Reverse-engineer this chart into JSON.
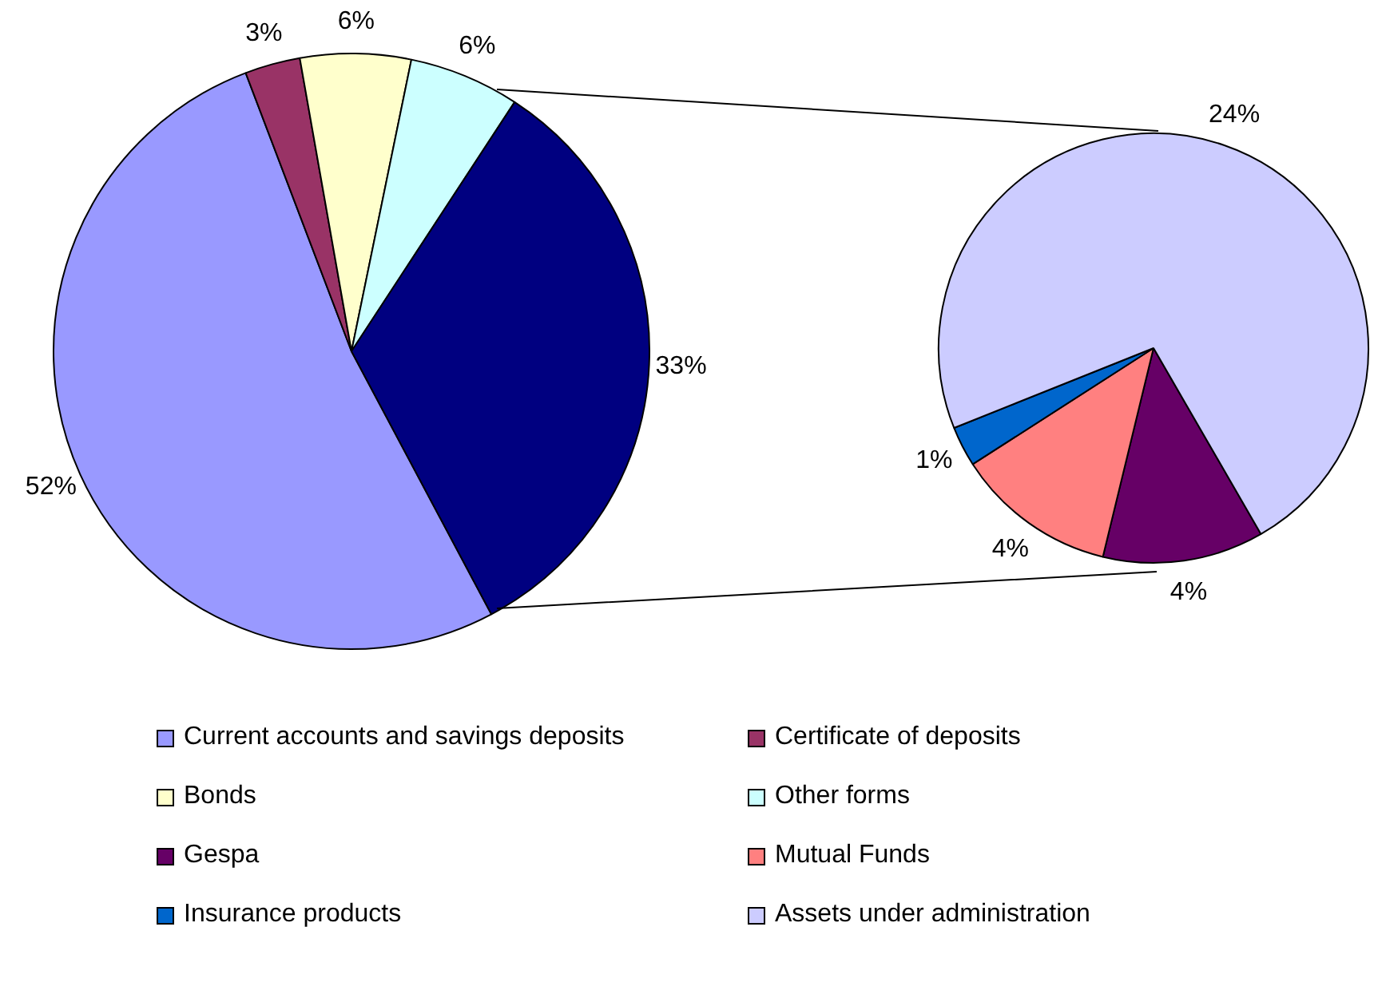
{
  "chart_data": [
    {
      "type": "pie",
      "categories": [
        "Current accounts and savings deposits",
        "Certificate of deposits",
        "Bonds",
        "Other forms",
        null
      ],
      "values": [
        52,
        3,
        6,
        6,
        33
      ],
      "value_labels": [
        "52%",
        "3%",
        "6%",
        "6%",
        "33%"
      ],
      "colors": [
        "#9999ff",
        "#993366",
        "#ffffcc",
        "#ccffff",
        "#000080"
      ],
      "legend": "bottom"
    },
    {
      "type": "pie",
      "categories": [
        "Gespa",
        "Mutual Funds",
        "Insurance products",
        "Assets under administration"
      ],
      "values": [
        4,
        4,
        1,
        24
      ],
      "value_labels": [
        "4%",
        "4%",
        "1%",
        "24%"
      ],
      "colors": [
        "#660066",
        "#ff8080",
        "#0066cc",
        "#ccccff"
      ],
      "legend": "bottom"
    }
  ]
}
